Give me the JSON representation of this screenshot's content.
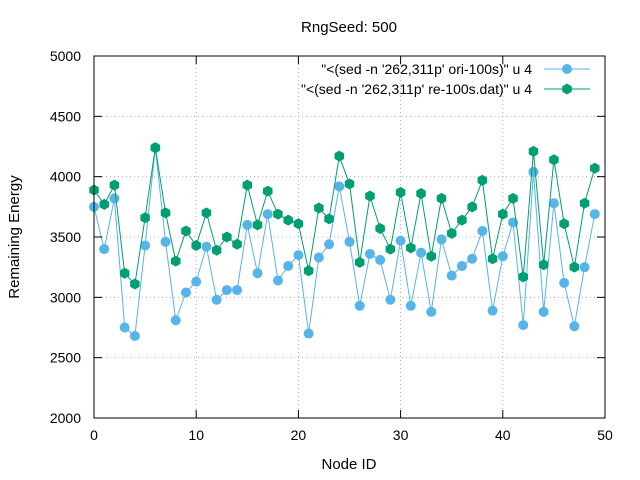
{
  "chart_data": {
    "type": "line",
    "title": "RngSeed: 500",
    "xlabel": "Node ID",
    "ylabel": "Remaining Energy",
    "xlim": [
      0,
      50
    ],
    "ylim": [
      2000,
      5000
    ],
    "xticks": [
      0,
      10,
      20,
      30,
      40,
      50
    ],
    "yticks": [
      2000,
      2500,
      3000,
      3500,
      4000,
      4500,
      5000
    ],
    "grid": true,
    "legend_position": "top-right",
    "x": [
      0,
      1,
      2,
      3,
      4,
      5,
      6,
      7,
      8,
      9,
      10,
      11,
      12,
      13,
      14,
      15,
      16,
      17,
      18,
      19,
      20,
      21,
      22,
      23,
      24,
      25,
      26,
      27,
      28,
      29,
      30,
      31,
      32,
      33,
      34,
      35,
      36,
      37,
      38,
      39,
      40,
      41,
      42,
      43,
      44,
      45,
      46,
      47,
      48,
      49
    ],
    "series": [
      {
        "name": "\"<(sed -n '262,311p' ori-100s)\" u 4",
        "color": "#56b4e9",
        "marker": "circle",
        "values": [
          3750,
          3400,
          3820,
          2750,
          2680,
          3430,
          4240,
          3460,
          2810,
          3040,
          3130,
          3420,
          2980,
          3060,
          3060,
          3600,
          3200,
          3690,
          3140,
          3260,
          3350,
          2700,
          3330,
          3440,
          3920,
          3460,
          2930,
          3360,
          3310,
          2980,
          3470,
          2930,
          3370,
          2880,
          3480,
          3180,
          3260,
          3320,
          3550,
          2890,
          3340,
          3620,
          2770,
          4040,
          2880,
          3780,
          3120,
          2760,
          3250,
          3690
        ]
      },
      {
        "name": "\"<(sed -n '262,311p' re-100s.dat)\" u 4",
        "color": "#009e73",
        "marker": "hexagon",
        "values": [
          3890,
          3770,
          3930,
          3200,
          3110,
          3660,
          4240,
          3700,
          3300,
          3550,
          3430,
          3700,
          3390,
          3500,
          3440,
          3930,
          3600,
          3880,
          3690,
          3640,
          3610,
          3220,
          3740,
          3650,
          4170,
          3940,
          3290,
          3840,
          3570,
          3400,
          3870,
          3410,
          3860,
          3340,
          3820,
          3530,
          3640,
          3750,
          3970,
          3320,
          3690,
          3820,
          3170,
          4210,
          3270,
          4140,
          3610,
          3250,
          3780,
          4070
        ]
      }
    ]
  }
}
